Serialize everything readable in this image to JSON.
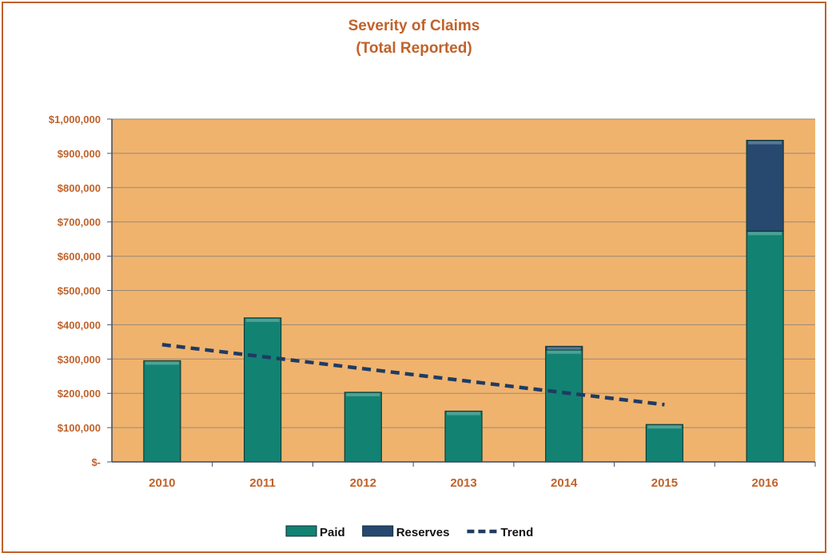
{
  "chart_data": {
    "type": "bar",
    "title": "Severity of Claims",
    "subtitle": "(Total Reported)",
    "categories": [
      "2010",
      "2011",
      "2012",
      "2013",
      "2014",
      "2015",
      "2016"
    ],
    "series": [
      {
        "name": "Paid",
        "type": "bar",
        "stacked": true,
        "color": "#128273",
        "values": [
          295000,
          420000,
          203000,
          148000,
          327000,
          109000,
          673000
        ]
      },
      {
        "name": "Reserves",
        "type": "bar",
        "stacked": true,
        "color": "#27486f",
        "values": [
          0,
          0,
          0,
          0,
          10000,
          0,
          265000
        ]
      },
      {
        "name": "Trend",
        "type": "line",
        "style": "dashed",
        "color": "#1f3b63",
        "values": [
          342000,
          307000,
          272000,
          237000,
          202000,
          167000,
          null
        ]
      }
    ],
    "yticks": [
      "$-",
      "$100,000",
      "$200,000",
      "$300,000",
      "$400,000",
      "$500,000",
      "$600,000",
      "$700,000",
      "$800,000",
      "$900,000",
      "$1,000,000"
    ],
    "ylim": [
      0,
      1000000
    ],
    "xlabel": "",
    "ylabel": "",
    "grid": true,
    "legend_position": "bottom",
    "plot_background": "#efb36e"
  }
}
